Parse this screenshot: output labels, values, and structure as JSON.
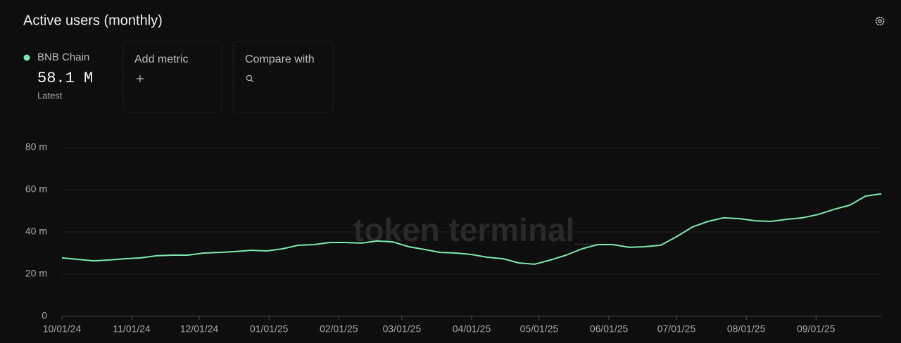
{
  "chart_data": {
    "type": "line",
    "title": "Active users (monthly)",
    "latest_value_label": "58.1 M",
    "latest_caption": "Latest",
    "controls": [
      "Add metric",
      "Compare with"
    ],
    "watermark": "token terminal_",
    "x": [
      "10/01/24",
      "10/08/24",
      "10/15/24",
      "10/22/24",
      "10/29/24",
      "11/05/24",
      "11/12/24",
      "11/19/24",
      "11/26/24",
      "12/03/24",
      "12/10/24",
      "12/17/24",
      "12/24/24",
      "12/31/24",
      "01/07/25",
      "01/14/25",
      "01/21/25",
      "01/28/25",
      "02/04/25",
      "02/11/25",
      "02/18/25",
      "02/25/25",
      "03/04/25",
      "03/11/25",
      "03/18/25",
      "03/25/25",
      "04/01/25",
      "04/08/25",
      "04/15/25",
      "04/22/25",
      "04/29/25",
      "05/06/25",
      "05/13/25",
      "05/20/25",
      "05/27/25",
      "06/03/25",
      "06/10/25",
      "06/17/25",
      "06/24/25",
      "07/01/25",
      "07/08/25",
      "07/15/25",
      "07/22/25",
      "07/29/25",
      "08/05/25",
      "08/12/25",
      "08/19/25",
      "08/26/25",
      "09/02/25",
      "09/09/25",
      "09/16/25",
      "09/23/25",
      "09/30/25"
    ],
    "series": [
      {
        "name": "BNB Chain",
        "color": "#7de8ae",
        "values": [
          27.7,
          27,
          26.3,
          26.7,
          27.3,
          27.7,
          28.7,
          29,
          29,
          30,
          30.3,
          30.7,
          31.3,
          31,
          32,
          33.7,
          34,
          35,
          35,
          34.7,
          35.7,
          35.3,
          33,
          31.7,
          30.3,
          30,
          29.3,
          28,
          27.3,
          25.3,
          24.7,
          26.7,
          29,
          32,
          34,
          34,
          32.7,
          33,
          33.7,
          37.7,
          42.3,
          45,
          46.7,
          46.3,
          45.3,
          45,
          46,
          46.7,
          48.3,
          50.7,
          52.7,
          57,
          58.1
        ]
      }
    ],
    "xlim": [
      "10/01/24",
      "09/30/25"
    ],
    "xticks": [
      "10/01/24",
      "11/01/24",
      "12/01/24",
      "01/01/25",
      "02/01/25",
      "03/01/25",
      "04/01/25",
      "05/01/25",
      "06/01/25",
      "07/01/25",
      "08/01/25",
      "09/01/25"
    ],
    "ylim": [
      0,
      80
    ],
    "yticks": [
      0,
      {
        "value": 20,
        "label": "20 m"
      },
      {
        "value": 40,
        "label": "40 m"
      },
      {
        "value": 60,
        "label": "60 m"
      },
      {
        "value": 80,
        "label": "80 m"
      }
    ],
    "grid": true
  }
}
